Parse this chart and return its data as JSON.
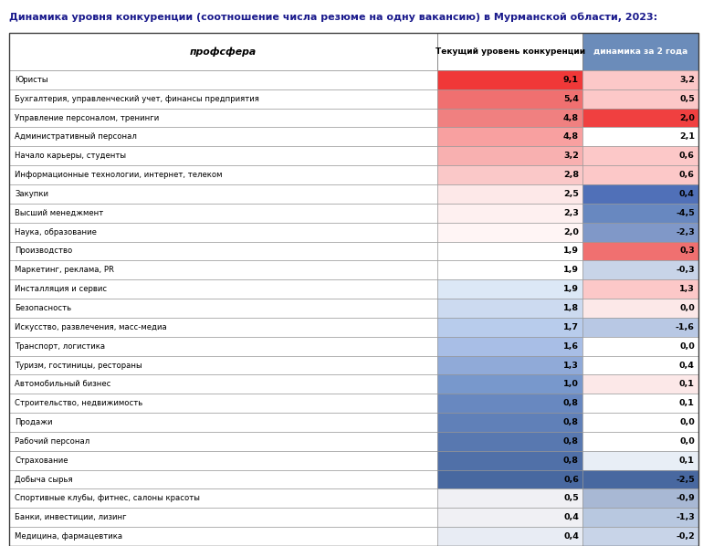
{
  "title": "Динамика уровня конкуренции (соотношение числа резюме на одну вакансию) в Мурманской области, 2023:",
  "col1_header": "профсфера",
  "col2_header": "Текущий уровень конкуренции",
  "col3_header": "динамика за 2 года",
  "rows": [
    {
      "name": "Юристы",
      "level": 9.1,
      "dynamic": 3.2
    },
    {
      "name": "Бухгалтерия, управленческий учет, финансы предприятия",
      "level": 5.4,
      "dynamic": 0.5
    },
    {
      "name": "Управление персоналом, тренинги",
      "level": 4.8,
      "dynamic": 2.0
    },
    {
      "name": "Административный персонал",
      "level": 4.8,
      "dynamic": 2.1
    },
    {
      "name": "Начало карьеры, студенты",
      "level": 3.2,
      "dynamic": 0.6
    },
    {
      "name": "Информационные технологии, интернет, телеком",
      "level": 2.8,
      "dynamic": 0.6
    },
    {
      "name": "Закупки",
      "level": 2.5,
      "dynamic": 0.4
    },
    {
      "name": "Высший менеджмент",
      "level": 2.3,
      "dynamic": -4.5
    },
    {
      "name": "Наука, образование",
      "level": 2.0,
      "dynamic": -2.3
    },
    {
      "name": "Производство",
      "level": 1.9,
      "dynamic": 0.3
    },
    {
      "name": "Маркетинг, реклама, PR",
      "level": 1.9,
      "dynamic": -0.3
    },
    {
      "name": "Инсталляция и сервис",
      "level": 1.9,
      "dynamic": 1.3
    },
    {
      "name": "Безопасность",
      "level": 1.8,
      "dynamic": 0.0
    },
    {
      "name": "Искусство, развлечения, масс-медиа",
      "level": 1.7,
      "dynamic": -1.6
    },
    {
      "name": "Транспорт, логистика",
      "level": 1.6,
      "dynamic": 0.0
    },
    {
      "name": "Туризм, гостиницы, рестораны",
      "level": 1.3,
      "dynamic": 0.4
    },
    {
      "name": "Автомобильный бизнес",
      "level": 1.0,
      "dynamic": 0.1
    },
    {
      "name": "Строительство, недвижимость",
      "level": 0.8,
      "dynamic": 0.1
    },
    {
      "name": "Продажи",
      "level": 0.8,
      "dynamic": 0.0
    },
    {
      "name": "Рабочий персонал",
      "level": 0.8,
      "dynamic": 0.0
    },
    {
      "name": "Страхование",
      "level": 0.8,
      "dynamic": 0.1
    },
    {
      "name": "Добыча сырья",
      "level": 0.6,
      "dynamic": -2.5
    },
    {
      "name": "Спортивные клубы, фитнес, салоны красоты",
      "level": 0.5,
      "dynamic": -0.9
    },
    {
      "name": "Банки, инвестиции, лизинг",
      "level": 0.4,
      "dynamic": -1.3
    },
    {
      "name": "Медицина, фармацевтика",
      "level": 0.4,
      "dynamic": -0.2
    }
  ],
  "title_color": "#1a1a8c",
  "col3_header_bg": "#6b8cba",
  "level_colors": {
    "9.1": "#f03838",
    "5.4": "#f07878",
    "4.8a": "#f08888",
    "4.8b": "#f8a0a0",
    "3.2": "#f8b0b0",
    "2.8": "#fac0c0",
    "2.5": "#fde0e0",
    "2.3": "#fee8e8",
    "2.0": "#fff0f0",
    "1.9a": "#ffffff",
    "1.9b": "#ffffff",
    "1.9c": "#e8eef8",
    "1.8": "#dce6f4",
    "1.7": "#c8d8f0",
    "1.6": "#b8cce8",
    "1.3": "#a8bede",
    "1.0": "#98b0d8",
    "0.8a": "#88a2d0",
    "0.8b": "#7a96c8",
    "0.8c": "#7090c0",
    "0.8d": "#6888b8",
    "0.6": "#607eb0",
    "0.5": "#f0f0f0",
    "0.4a": "#f0f0f0",
    "0.4b": "#e8ecf4"
  },
  "dynamic_colors": {
    "3.2": "#fcc8c8",
    "0.5": "#fcc8c8",
    "2.0": "#f04040",
    "2.1": "#ffffff",
    "0.6a": "#fcc8c8",
    "0.6b": "#fcc8c8",
    "0.4a": "#4878b8",
    "neg4.5": "#6888c0",
    "neg2.3": "#8098c8",
    "0.3": "#f07070",
    "neg0.3": "#c0cce0",
    "1.3": "#fcc8c8",
    "0.0a": "#fce0e0",
    "neg1.6": "#c8d4e8",
    "0.0b": "#ffffff",
    "0.4b": "#ffffff",
    "0.1a": "#fce8e8",
    "0.1b": "#ffffff",
    "0.0c": "#ffffff",
    "0.0d": "#ffffff",
    "0.1c": "#e8ecf4",
    "neg2.5": "#5070b0",
    "neg0.9": "#a8b8d4",
    "neg1.3": "#c0cce0",
    "neg0.2": "#c8d4e8"
  }
}
